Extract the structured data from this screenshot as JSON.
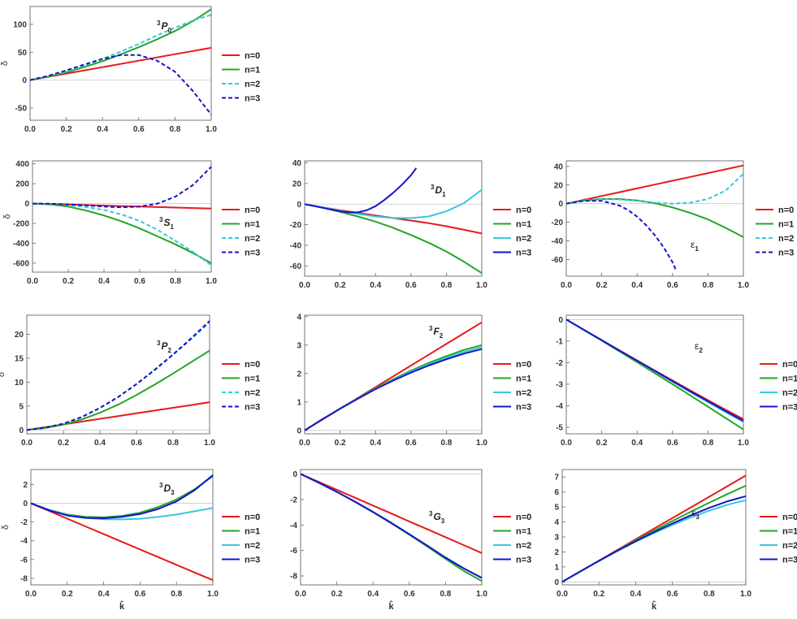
{
  "figure": {
    "legend_labels": [
      "n=0",
      "n=1",
      "n=2",
      "n=3"
    ],
    "series_colors": [
      "#e8191c",
      "#24a524",
      "#38c8dc",
      "#1515c8"
    ]
  },
  "chart_data": [
    {
      "type": "line",
      "title": "3P0",
      "label_sup": "3",
      "label_main": "P",
      "label_sub": "0",
      "xlabel": "",
      "ylabel": "δ",
      "xlim": [
        0,
        1
      ],
      "ylim": [
        -72,
        132
      ],
      "xticks": [
        0,
        0.2,
        0.4,
        0.6,
        0.8,
        1
      ],
      "yticks": [
        -50,
        0,
        50,
        100
      ],
      "legend": true,
      "dashed": [
        false,
        false,
        true,
        true
      ],
      "x": [
        0,
        0.1,
        0.2,
        0.3,
        0.4,
        0.5,
        0.6,
        0.7,
        0.8,
        0.9,
        1.0
      ],
      "series": [
        {
          "name": "n=0",
          "values": [
            0,
            5.8,
            11.6,
            17.4,
            23.2,
            29,
            34.8,
            40.6,
            46.4,
            52.2,
            58
          ]
        },
        {
          "name": "n=1",
          "values": [
            0,
            6.3,
            14,
            23.5,
            34,
            46,
            59,
            73,
            88,
            106,
            127
          ]
        },
        {
          "name": "n=2",
          "values": [
            0,
            6.8,
            15.5,
            26,
            38,
            51,
            65,
            80,
            94,
            107,
            117
          ]
        },
        {
          "name": "n=3",
          "values": [
            0,
            7.5,
            17.5,
            28,
            38,
            45,
            45,
            35,
            15,
            -20,
            -62
          ]
        }
      ]
    },
    {
      "type": "line",
      "title": "3S1",
      "label_sup": "3",
      "label_main": "S",
      "label_sub": "1",
      "xlabel": "",
      "ylabel": "δ",
      "xlim": [
        0,
        1
      ],
      "ylim": [
        -690,
        430
      ],
      "xticks": [
        0,
        0.2,
        0.4,
        0.6,
        0.8,
        1
      ],
      "yticks": [
        -600,
        -400,
        -200,
        0,
        200,
        400
      ],
      "legend": true,
      "dashed": [
        false,
        false,
        true,
        true
      ],
      "x": [
        0,
        0.1,
        0.2,
        0.3,
        0.4,
        0.5,
        0.6,
        0.7,
        0.8,
        0.9,
        1.0
      ],
      "series": [
        {
          "name": "n=0",
          "values": [
            0,
            -5,
            -10,
            -15,
            -20,
            -25,
            -30,
            -35,
            -40,
            -45,
            -50
          ]
        },
        {
          "name": "n=1",
          "values": [
            0,
            -8,
            -30,
            -70,
            -120,
            -180,
            -250,
            -330,
            -410,
            -500,
            -600
          ]
        },
        {
          "name": "n=2",
          "values": [
            0,
            -4,
            -15,
            -35,
            -65,
            -110,
            -175,
            -265,
            -375,
            -490,
            -620
          ]
        },
        {
          "name": "n=3",
          "values": [
            0,
            -2,
            -8,
            -18,
            -30,
            -38,
            -30,
            0,
            70,
            190,
            370
          ]
        }
      ]
    },
    {
      "type": "line",
      "title": "3D1",
      "label_sup": "3",
      "label_main": "D",
      "label_sub": "1",
      "xlabel": "",
      "ylabel": "",
      "xlim": [
        0,
        1
      ],
      "ylim": [
        -70,
        42
      ],
      "xticks": [
        0,
        0.2,
        0.4,
        0.6,
        0.8,
        1
      ],
      "yticks": [
        -60,
        -40,
        -20,
        0,
        20,
        40
      ],
      "legend": true,
      "dashed": [
        false,
        false,
        false,
        false
      ],
      "x": [
        0,
        0.1,
        0.2,
        0.3,
        0.4,
        0.5,
        0.6,
        0.7,
        0.8,
        0.9,
        1.0
      ],
      "series": [
        {
          "name": "n=0",
          "values": [
            0,
            -3,
            -6,
            -8.5,
            -11,
            -13.5,
            -16,
            -18.5,
            -21.5,
            -25,
            -28.5
          ]
        },
        {
          "name": "n=1",
          "values": [
            0,
            -3.5,
            -7.5,
            -12,
            -17,
            -23,
            -30,
            -37.5,
            -46,
            -56,
            -67
          ]
        },
        {
          "name": "n=2",
          "values": [
            0,
            -3,
            -6.5,
            -9.5,
            -12,
            -13.5,
            -13.5,
            -12,
            -7,
            1,
            14
          ]
        },
        {
          "name": "n=3",
          "x": [
            0,
            0.1,
            0.2,
            0.25,
            0.3,
            0.35,
            0.4,
            0.45,
            0.5,
            0.55,
            0.6,
            0.63
          ],
          "values": [
            0,
            -3.5,
            -7,
            -8,
            -8,
            -6,
            -2,
            4,
            11,
            19,
            28,
            35
          ]
        }
      ]
    },
    {
      "type": "line",
      "title": "ε1",
      "label_main": "ε",
      "label_sub": "1",
      "xlabel": "",
      "ylabel": "",
      "xlim": [
        0,
        1
      ],
      "ylim": [
        -78,
        46
      ],
      "xticks": [
        0,
        0.2,
        0.4,
        0.6,
        0.8,
        1
      ],
      "yticks": [
        -60,
        -40,
        -20,
        0,
        20,
        40
      ],
      "legend": true,
      "dashed": [
        false,
        false,
        true,
        true
      ],
      "x": [
        0,
        0.1,
        0.2,
        0.3,
        0.4,
        0.5,
        0.6,
        0.7,
        0.8,
        0.9,
        1.0
      ],
      "series": [
        {
          "name": "n=0",
          "values": [
            0,
            4.1,
            8.2,
            12.3,
            16.4,
            20.5,
            24.6,
            28.7,
            32.8,
            36.9,
            41
          ]
        },
        {
          "name": "n=1",
          "values": [
            0,
            3.5,
            5,
            5,
            3.5,
            0.5,
            -4,
            -10,
            -17,
            -26,
            -36
          ]
        },
        {
          "name": "n=2",
          "values": [
            0,
            3.5,
            5,
            4.5,
            3,
            1,
            0,
            1,
            5,
            14,
            32
          ]
        },
        {
          "name": "n=3",
          "x": [
            0,
            0.1,
            0.2,
            0.3,
            0.35,
            0.4,
            0.45,
            0.5,
            0.55,
            0.6,
            0.62
          ],
          "values": [
            0,
            3,
            3,
            -2,
            -7,
            -14,
            -23,
            -34,
            -47,
            -63,
            -72
          ]
        }
      ]
    },
    {
      "type": "line",
      "title": "3P2",
      "label_sup": "3",
      "label_main": "P",
      "label_sub": "2",
      "xlabel": "",
      "ylabel": "δ",
      "xlim": [
        0,
        1
      ],
      "ylim": [
        -0.8,
        24
      ],
      "xticks": [
        0,
        0.2,
        0.4,
        0.6,
        0.8,
        1
      ],
      "yticks": [
        0,
        5,
        10,
        15,
        20
      ],
      "legend": true,
      "dashed": [
        false,
        false,
        true,
        true
      ],
      "x": [
        0,
        0.1,
        0.2,
        0.3,
        0.4,
        0.5,
        0.6,
        0.7,
        0.8,
        0.9,
        1.0
      ],
      "series": [
        {
          "name": "n=0",
          "values": [
            0,
            0.58,
            1.16,
            1.74,
            2.32,
            2.9,
            3.48,
            4.06,
            4.64,
            5.22,
            5.8
          ]
        },
        {
          "name": "n=1",
          "values": [
            0,
            0.4,
            1.1,
            2.2,
            3.6,
            5.3,
            7.3,
            9.5,
            11.8,
            14.2,
            16.6
          ]
        },
        {
          "name": "n=2",
          "values": [
            0,
            0.45,
            1.3,
            2.7,
            4.6,
            6.9,
            9.6,
            12.5,
            15.7,
            19,
            22.5
          ]
        },
        {
          "name": "n=3",
          "values": [
            0,
            0.45,
            1.3,
            2.7,
            4.6,
            6.9,
            9.6,
            12.6,
            15.8,
            19.2,
            22.8
          ]
        }
      ]
    },
    {
      "type": "line",
      "title": "3F2",
      "label_sup": "3",
      "label_main": "F",
      "label_sub": "2",
      "xlabel": "",
      "ylabel": "",
      "xlim": [
        0,
        1
      ],
      "ylim": [
        -0.12,
        4.05
      ],
      "xticks": [
        0,
        0.2,
        0.4,
        0.6,
        0.8,
        1
      ],
      "yticks": [
        0,
        1,
        2,
        3,
        4
      ],
      "legend": true,
      "dashed": [
        false,
        false,
        false,
        false
      ],
      "x": [
        0,
        0.1,
        0.2,
        0.3,
        0.4,
        0.5,
        0.6,
        0.7,
        0.8,
        0.9,
        1.0
      ],
      "series": [
        {
          "name": "n=0",
          "values": [
            0,
            0.38,
            0.76,
            1.14,
            1.52,
            1.9,
            2.28,
            2.66,
            3.04,
            3.42,
            3.8
          ]
        },
        {
          "name": "n=1",
          "values": [
            0,
            0.39,
            0.77,
            1.13,
            1.48,
            1.8,
            2.1,
            2.37,
            2.61,
            2.83,
            3.0
          ]
        },
        {
          "name": "n=2",
          "values": [
            0,
            0.39,
            0.76,
            1.12,
            1.46,
            1.77,
            2.06,
            2.32,
            2.55,
            2.76,
            2.93
          ]
        },
        {
          "name": "n=3",
          "values": [
            0,
            0.39,
            0.76,
            1.11,
            1.45,
            1.75,
            2.03,
            2.28,
            2.5,
            2.7,
            2.86
          ]
        }
      ]
    },
    {
      "type": "line",
      "title": "ε2",
      "label_main": "ε",
      "label_sub": "2",
      "xlabel": "",
      "ylabel": "",
      "xlim": [
        0,
        1
      ],
      "ylim": [
        -5.3,
        0.2
      ],
      "xticks": [
        0,
        0.2,
        0.4,
        0.6,
        0.8,
        1
      ],
      "yticks": [
        -5,
        -4,
        -3,
        -2,
        -1,
        0
      ],
      "legend": true,
      "dashed": [
        false,
        false,
        false,
        false
      ],
      "x": [
        0,
        0.1,
        0.2,
        0.3,
        0.4,
        0.5,
        0.6,
        0.7,
        0.8,
        0.9,
        1.0
      ],
      "series": [
        {
          "name": "n=0",
          "values": [
            0,
            -0.48,
            -0.96,
            -1.43,
            -1.9,
            -2.37,
            -2.83,
            -3.29,
            -3.74,
            -4.19,
            -4.62
          ]
        },
        {
          "name": "n=1",
          "values": [
            0,
            -0.49,
            -0.98,
            -1.48,
            -1.98,
            -2.49,
            -3.0,
            -3.52,
            -4.04,
            -4.57,
            -5.1
          ]
        },
        {
          "name": "n=2",
          "values": [
            0,
            -0.48,
            -0.96,
            -1.44,
            -1.92,
            -2.4,
            -2.88,
            -3.36,
            -3.83,
            -4.3,
            -4.75
          ]
        },
        {
          "name": "n=3",
          "values": [
            0,
            -0.48,
            -0.96,
            -1.44,
            -1.91,
            -2.38,
            -2.86,
            -3.33,
            -3.79,
            -4.25,
            -4.7
          ]
        }
      ]
    },
    {
      "type": "line",
      "title": "3D3",
      "label_sup": "3",
      "label_main": "D",
      "label_sub": "3",
      "xlabel": "k̂",
      "ylabel": "δ",
      "xlim": [
        0,
        1
      ],
      "ylim": [
        -8.7,
        3.6
      ],
      "xticks": [
        0,
        0.2,
        0.4,
        0.6,
        0.8,
        1
      ],
      "yticks": [
        -8,
        -6,
        -4,
        -2,
        0,
        2
      ],
      "legend": true,
      "dashed": [
        false,
        false,
        false,
        false
      ],
      "x": [
        0,
        0.1,
        0.2,
        0.3,
        0.4,
        0.5,
        0.6,
        0.7,
        0.8,
        0.9,
        1.0
      ],
      "series": [
        {
          "name": "n=0",
          "values": [
            0,
            -0.82,
            -1.64,
            -2.46,
            -3.28,
            -4.1,
            -4.92,
            -5.74,
            -6.56,
            -7.38,
            -8.2
          ]
        },
        {
          "name": "n=1",
          "values": [
            0,
            -0.7,
            -1.2,
            -1.45,
            -1.5,
            -1.35,
            -1.0,
            -0.4,
            0.4,
            1.5,
            2.9
          ]
        },
        {
          "name": "n=2",
          "values": [
            0,
            -0.7,
            -1.25,
            -1.55,
            -1.7,
            -1.72,
            -1.65,
            -1.45,
            -1.2,
            -0.85,
            -0.5
          ]
        },
        {
          "name": "n=3",
          "values": [
            0,
            -0.75,
            -1.3,
            -1.55,
            -1.6,
            -1.45,
            -1.15,
            -0.6,
            0.2,
            1.4,
            3.0
          ]
        }
      ]
    },
    {
      "type": "line",
      "title": "3G3",
      "label_sup": "3",
      "label_main": "G",
      "label_sub": "3",
      "xlabel": "k̂",
      "ylabel": "",
      "xlim": [
        0,
        1
      ],
      "ylim": [
        -8.7,
        0.35
      ],
      "xticks": [
        0,
        0.2,
        0.4,
        0.6,
        0.8,
        1
      ],
      "yticks": [
        -8,
        -6,
        -4,
        -2,
        0
      ],
      "legend": true,
      "dashed": [
        false,
        false,
        false,
        false
      ],
      "x": [
        0,
        0.1,
        0.2,
        0.3,
        0.4,
        0.5,
        0.6,
        0.7,
        0.8,
        0.9,
        1.0
      ],
      "series": [
        {
          "name": "n=0",
          "values": [
            0,
            -0.62,
            -1.24,
            -1.86,
            -2.48,
            -3.1,
            -3.72,
            -4.34,
            -4.96,
            -5.58,
            -6.2
          ]
        },
        {
          "name": "n=1",
          "values": [
            0,
            -0.68,
            -1.4,
            -2.18,
            -3.0,
            -3.86,
            -4.76,
            -5.7,
            -6.66,
            -7.6,
            -8.4
          ]
        },
        {
          "name": "n=2",
          "values": [
            0,
            -0.68,
            -1.4,
            -2.17,
            -2.98,
            -3.83,
            -4.72,
            -5.63,
            -6.56,
            -7.4,
            -8.15
          ]
        },
        {
          "name": "n=3",
          "values": [
            0,
            -0.68,
            -1.4,
            -2.17,
            -2.98,
            -3.83,
            -4.72,
            -5.63,
            -6.56,
            -7.4,
            -8.15
          ]
        }
      ]
    },
    {
      "type": "line",
      "title": "ε3",
      "label_main": "ε",
      "label_sub": "3",
      "xlabel": "k̂",
      "ylabel": "",
      "xlim": [
        0,
        1
      ],
      "ylim": [
        -0.2,
        7.5
      ],
      "xticks": [
        0,
        0.2,
        0.4,
        0.6,
        0.8,
        1
      ],
      "yticks": [
        0,
        1,
        2,
        3,
        4,
        5,
        6,
        7
      ],
      "legend": true,
      "dashed": [
        false,
        false,
        false,
        false
      ],
      "x": [
        0,
        0.1,
        0.2,
        0.3,
        0.4,
        0.5,
        0.6,
        0.7,
        0.8,
        0.9,
        1.0
      ],
      "series": [
        {
          "name": "n=0",
          "values": [
            0,
            0.71,
            1.42,
            2.13,
            2.84,
            3.55,
            4.26,
            4.97,
            5.68,
            6.39,
            7.1
          ]
        },
        {
          "name": "n=1",
          "values": [
            0,
            0.71,
            1.41,
            2.1,
            2.77,
            3.42,
            4.06,
            4.68,
            5.28,
            5.86,
            6.42
          ]
        },
        {
          "name": "n=2",
          "values": [
            0,
            0.71,
            1.4,
            2.06,
            2.68,
            3.26,
            3.8,
            4.3,
            4.75,
            5.15,
            5.45
          ]
        },
        {
          "name": "n=3",
          "values": [
            0,
            0.71,
            1.4,
            2.07,
            2.71,
            3.32,
            3.9,
            4.44,
            4.94,
            5.38,
            5.72
          ]
        }
      ]
    }
  ]
}
